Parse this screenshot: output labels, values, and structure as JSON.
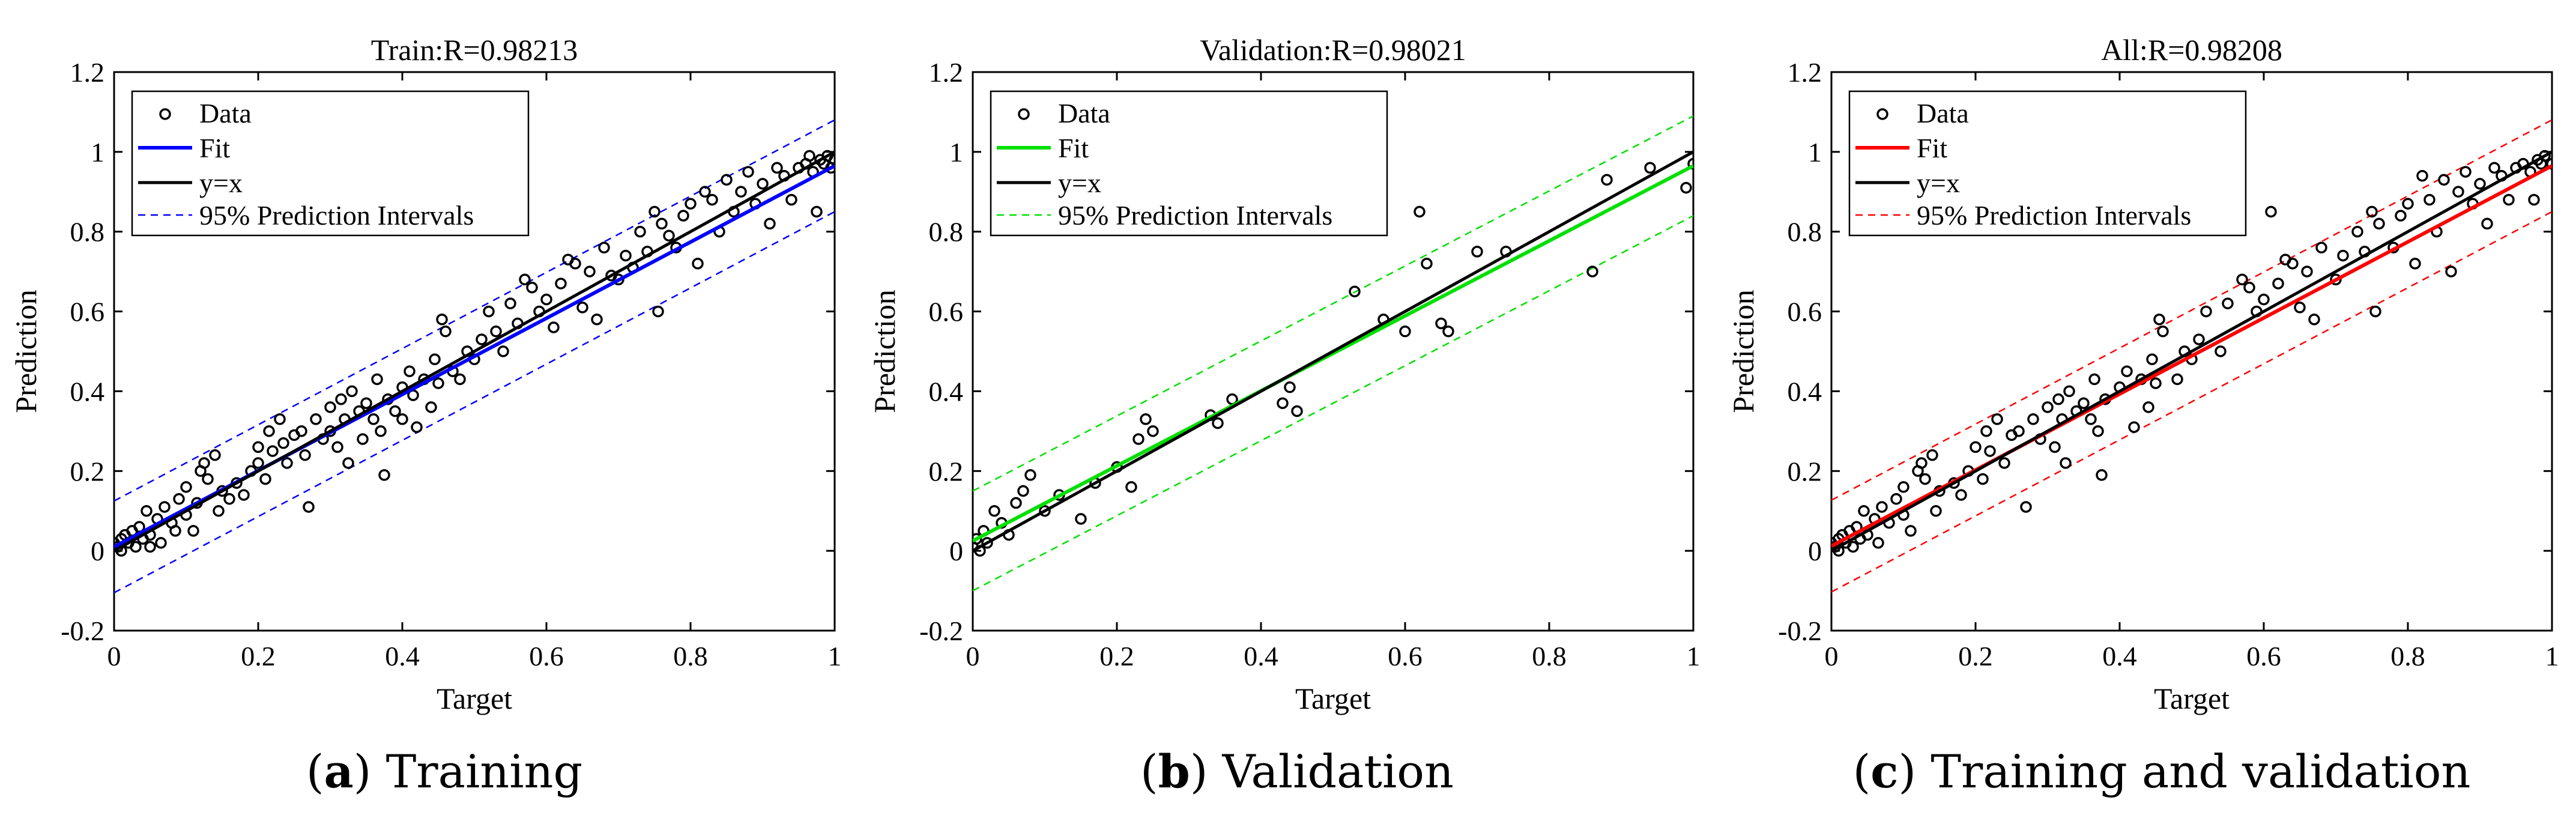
{
  "captions": [
    {
      "letter": "a",
      "text": "Training"
    },
    {
      "letter": "b",
      "text": "Validation"
    },
    {
      "letter": "c",
      "text": "Training and validation"
    }
  ],
  "chart_data": [
    {
      "type": "scatter",
      "title": "Train:R=0.98213",
      "xlabel": "Target",
      "ylabel": "Prediction",
      "xlim": [
        0,
        1
      ],
      "ylim": [
        -0.2,
        1.2
      ],
      "xticks": [
        "0",
        "0.2",
        "0.4",
        "0.6",
        "0.8",
        "1"
      ],
      "yticks": [
        "-0.2",
        "0",
        "0.2",
        "0.4",
        "0.6",
        "0.8",
        "1",
        "1.2"
      ],
      "legend": [
        "Data",
        "Fit",
        "y=x",
        "95% Prediction Intervals"
      ],
      "legend_position": "top-left",
      "color": "#0000ff",
      "fit": {
        "intercept": 0.01,
        "slope": 0.955
      },
      "interval_halfwidth": 0.115,
      "points": [
        [
          0.0,
          0.02
        ],
        [
          0.005,
          0.01
        ],
        [
          0.01,
          0.03
        ],
        [
          0.01,
          0.0
        ],
        [
          0.015,
          0.04
        ],
        [
          0.02,
          0.02
        ],
        [
          0.025,
          0.05
        ],
        [
          0.03,
          0.01
        ],
        [
          0.035,
          0.06
        ],
        [
          0.04,
          0.03
        ],
        [
          0.045,
          0.1
        ],
        [
          0.05,
          0.04
        ],
        [
          0.05,
          0.01
        ],
        [
          0.06,
          0.08
        ],
        [
          0.065,
          0.02
        ],
        [
          0.07,
          0.11
        ],
        [
          0.08,
          0.07
        ],
        [
          0.085,
          0.05
        ],
        [
          0.09,
          0.13
        ],
        [
          0.1,
          0.09
        ],
        [
          0.1,
          0.16
        ],
        [
          0.11,
          0.05
        ],
        [
          0.115,
          0.12
        ],
        [
          0.12,
          0.2
        ],
        [
          0.125,
          0.22
        ],
        [
          0.13,
          0.18
        ],
        [
          0.14,
          0.24
        ],
        [
          0.145,
          0.1
        ],
        [
          0.15,
          0.15
        ],
        [
          0.16,
          0.13
        ],
        [
          0.17,
          0.17
        ],
        [
          0.18,
          0.14
        ],
        [
          0.19,
          0.2
        ],
        [
          0.2,
          0.26
        ],
        [
          0.2,
          0.22
        ],
        [
          0.21,
          0.18
        ],
        [
          0.215,
          0.3
        ],
        [
          0.22,
          0.25
        ],
        [
          0.23,
          0.33
        ],
        [
          0.235,
          0.27
        ],
        [
          0.24,
          0.22
        ],
        [
          0.25,
          0.29
        ],
        [
          0.26,
          0.3
        ],
        [
          0.265,
          0.24
        ],
        [
          0.27,
          0.11
        ],
        [
          0.28,
          0.33
        ],
        [
          0.29,
          0.28
        ],
        [
          0.3,
          0.36
        ],
        [
          0.3,
          0.3
        ],
        [
          0.31,
          0.26
        ],
        [
          0.315,
          0.38
        ],
        [
          0.32,
          0.33
        ],
        [
          0.325,
          0.22
        ],
        [
          0.33,
          0.4
        ],
        [
          0.34,
          0.35
        ],
        [
          0.345,
          0.28
        ],
        [
          0.35,
          0.37
        ],
        [
          0.36,
          0.33
        ],
        [
          0.365,
          0.43
        ],
        [
          0.37,
          0.3
        ],
        [
          0.375,
          0.19
        ],
        [
          0.38,
          0.38
        ],
        [
          0.39,
          0.35
        ],
        [
          0.4,
          0.41
        ],
        [
          0.4,
          0.33
        ],
        [
          0.41,
          0.45
        ],
        [
          0.415,
          0.39
        ],
        [
          0.42,
          0.31
        ],
        [
          0.43,
          0.43
        ],
        [
          0.44,
          0.36
        ],
        [
          0.445,
          0.48
        ],
        [
          0.45,
          0.42
        ],
        [
          0.455,
          0.58
        ],
        [
          0.46,
          0.55
        ],
        [
          0.47,
          0.45
        ],
        [
          0.48,
          0.43
        ],
        [
          0.49,
          0.5
        ],
        [
          0.5,
          0.48
        ],
        [
          0.51,
          0.53
        ],
        [
          0.52,
          0.6
        ],
        [
          0.53,
          0.55
        ],
        [
          0.54,
          0.5
        ],
        [
          0.55,
          0.62
        ],
        [
          0.56,
          0.57
        ],
        [
          0.57,
          0.68
        ],
        [
          0.58,
          0.66
        ],
        [
          0.59,
          0.6
        ],
        [
          0.6,
          0.63
        ],
        [
          0.61,
          0.56
        ],
        [
          0.62,
          0.67
        ],
        [
          0.63,
          0.73
        ],
        [
          0.64,
          0.72
        ],
        [
          0.65,
          0.61
        ],
        [
          0.66,
          0.7
        ],
        [
          0.67,
          0.58
        ],
        [
          0.68,
          0.76
        ],
        [
          0.69,
          0.69
        ],
        [
          0.7,
          0.68
        ],
        [
          0.71,
          0.74
        ],
        [
          0.72,
          0.71
        ],
        [
          0.73,
          0.8
        ],
        [
          0.74,
          0.75
        ],
        [
          0.75,
          0.85
        ],
        [
          0.755,
          0.6
        ],
        [
          0.76,
          0.82
        ],
        [
          0.77,
          0.79
        ],
        [
          0.78,
          0.76
        ],
        [
          0.79,
          0.84
        ],
        [
          0.8,
          0.87
        ],
        [
          0.81,
          0.72
        ],
        [
          0.82,
          0.9
        ],
        [
          0.83,
          0.88
        ],
        [
          0.84,
          0.8
        ],
        [
          0.85,
          0.93
        ],
        [
          0.86,
          0.85
        ],
        [
          0.87,
          0.9
        ],
        [
          0.88,
          0.95
        ],
        [
          0.89,
          0.87
        ],
        [
          0.9,
          0.92
        ],
        [
          0.91,
          0.82
        ],
        [
          0.92,
          0.96
        ],
        [
          0.93,
          0.94
        ],
        [
          0.94,
          0.88
        ],
        [
          0.95,
          0.96
        ],
        [
          0.96,
          0.97
        ],
        [
          0.965,
          0.99
        ],
        [
          0.97,
          0.95
        ],
        [
          0.975,
          0.85
        ],
        [
          0.98,
          0.98
        ],
        [
          0.985,
          0.97
        ],
        [
          0.99,
          0.99
        ],
        [
          0.995,
          0.96
        ],
        [
          1.0,
          0.98
        ]
      ]
    },
    {
      "type": "scatter",
      "title": "Validation:R=0.98021",
      "xlabel": "Target",
      "ylabel": "Prediction",
      "xlim": [
        0,
        1
      ],
      "ylim": [
        -0.2,
        1.2
      ],
      "xticks": [
        "0",
        "0.2",
        "0.4",
        "0.6",
        "0.8",
        "1"
      ],
      "yticks": [
        "-0.2",
        "0",
        "0.2",
        "0.4",
        "0.6",
        "0.8",
        "1",
        "1.2"
      ],
      "legend": [
        "Data",
        "Fit",
        "y=x",
        "95% Prediction Intervals"
      ],
      "legend_position": "top-left",
      "color": "#00e000",
      "fit": {
        "intercept": 0.025,
        "slope": 0.94
      },
      "interval_halfwidth": 0.125,
      "points": [
        [
          0.0,
          0.01
        ],
        [
          0.005,
          0.03
        ],
        [
          0.01,
          0.0
        ],
        [
          0.015,
          0.05
        ],
        [
          0.02,
          0.02
        ],
        [
          0.03,
          0.1
        ],
        [
          0.04,
          0.07
        ],
        [
          0.05,
          0.04
        ],
        [
          0.06,
          0.12
        ],
        [
          0.07,
          0.15
        ],
        [
          0.08,
          0.19
        ],
        [
          0.1,
          0.1
        ],
        [
          0.12,
          0.14
        ],
        [
          0.15,
          0.08
        ],
        [
          0.17,
          0.17
        ],
        [
          0.2,
          0.21
        ],
        [
          0.22,
          0.16
        ],
        [
          0.23,
          0.28
        ],
        [
          0.24,
          0.33
        ],
        [
          0.25,
          0.3
        ],
        [
          0.33,
          0.34
        ],
        [
          0.34,
          0.32
        ],
        [
          0.36,
          0.38
        ],
        [
          0.43,
          0.37
        ],
        [
          0.44,
          0.41
        ],
        [
          0.45,
          0.35
        ],
        [
          0.53,
          0.65
        ],
        [
          0.57,
          0.58
        ],
        [
          0.6,
          0.55
        ],
        [
          0.62,
          0.85
        ],
        [
          0.63,
          0.72
        ],
        [
          0.65,
          0.57
        ],
        [
          0.66,
          0.55
        ],
        [
          0.7,
          0.75
        ],
        [
          0.74,
          0.75
        ],
        [
          0.86,
          0.7
        ],
        [
          0.88,
          0.93
        ],
        [
          0.94,
          0.96
        ],
        [
          0.99,
          0.91
        ],
        [
          1.0,
          0.97
        ]
      ]
    },
    {
      "type": "scatter",
      "title": "All:R=0.98208",
      "xlabel": "Target",
      "ylabel": "Prediction",
      "xlim": [
        0,
        1
      ],
      "ylim": [
        -0.2,
        1.2
      ],
      "xticks": [
        "0",
        "0.2",
        "0.4",
        "0.6",
        "0.8",
        "1"
      ],
      "yticks": [
        "-0.2",
        "0",
        "0.2",
        "0.4",
        "0.6",
        "0.8",
        "1",
        "1.2"
      ],
      "legend": [
        "Data",
        "Fit",
        "y=x",
        "95% Prediction Intervals"
      ],
      "legend_position": "top-left",
      "color": "#ff0000",
      "fit": {
        "intercept": 0.012,
        "slope": 0.953
      },
      "interval_halfwidth": 0.115,
      "points": [
        [
          0.0,
          0.02
        ],
        [
          0.005,
          0.01
        ],
        [
          0.01,
          0.03
        ],
        [
          0.01,
          0.0
        ],
        [
          0.015,
          0.04
        ],
        [
          0.02,
          0.02
        ],
        [
          0.025,
          0.05
        ],
        [
          0.03,
          0.01
        ],
        [
          0.035,
          0.06
        ],
        [
          0.04,
          0.03
        ],
        [
          0.045,
          0.1
        ],
        [
          0.05,
          0.04
        ],
        [
          0.06,
          0.08
        ],
        [
          0.065,
          0.02
        ],
        [
          0.07,
          0.11
        ],
        [
          0.08,
          0.07
        ],
        [
          0.09,
          0.13
        ],
        [
          0.1,
          0.09
        ],
        [
          0.1,
          0.16
        ],
        [
          0.11,
          0.05
        ],
        [
          0.12,
          0.2
        ],
        [
          0.125,
          0.22
        ],
        [
          0.13,
          0.18
        ],
        [
          0.14,
          0.24
        ],
        [
          0.145,
          0.1
        ],
        [
          0.15,
          0.15
        ],
        [
          0.17,
          0.17
        ],
        [
          0.18,
          0.14
        ],
        [
          0.19,
          0.2
        ],
        [
          0.2,
          0.26
        ],
        [
          0.21,
          0.18
        ],
        [
          0.215,
          0.3
        ],
        [
          0.22,
          0.25
        ],
        [
          0.23,
          0.33
        ],
        [
          0.24,
          0.22
        ],
        [
          0.25,
          0.29
        ],
        [
          0.26,
          0.3
        ],
        [
          0.27,
          0.11
        ],
        [
          0.28,
          0.33
        ],
        [
          0.29,
          0.28
        ],
        [
          0.3,
          0.36
        ],
        [
          0.31,
          0.26
        ],
        [
          0.315,
          0.38
        ],
        [
          0.32,
          0.33
        ],
        [
          0.325,
          0.22
        ],
        [
          0.33,
          0.4
        ],
        [
          0.34,
          0.35
        ],
        [
          0.35,
          0.37
        ],
        [
          0.36,
          0.33
        ],
        [
          0.365,
          0.43
        ],
        [
          0.37,
          0.3
        ],
        [
          0.375,
          0.19
        ],
        [
          0.38,
          0.38
        ],
        [
          0.4,
          0.41
        ],
        [
          0.41,
          0.45
        ],
        [
          0.42,
          0.31
        ],
        [
          0.43,
          0.43
        ],
        [
          0.44,
          0.36
        ],
        [
          0.445,
          0.48
        ],
        [
          0.45,
          0.42
        ],
        [
          0.455,
          0.58
        ],
        [
          0.46,
          0.55
        ],
        [
          0.48,
          0.43
        ],
        [
          0.49,
          0.5
        ],
        [
          0.5,
          0.48
        ],
        [
          0.51,
          0.53
        ],
        [
          0.52,
          0.6
        ],
        [
          0.54,
          0.5
        ],
        [
          0.55,
          0.62
        ],
        [
          0.57,
          0.68
        ],
        [
          0.58,
          0.66
        ],
        [
          0.59,
          0.6
        ],
        [
          0.6,
          0.63
        ],
        [
          0.61,
          0.85
        ],
        [
          0.62,
          0.67
        ],
        [
          0.63,
          0.73
        ],
        [
          0.64,
          0.72
        ],
        [
          0.65,
          0.61
        ],
        [
          0.66,
          0.7
        ],
        [
          0.67,
          0.58
        ],
        [
          0.68,
          0.76
        ],
        [
          0.7,
          0.68
        ],
        [
          0.71,
          0.74
        ],
        [
          0.73,
          0.8
        ],
        [
          0.74,
          0.75
        ],
        [
          0.75,
          0.85
        ],
        [
          0.755,
          0.6
        ],
        [
          0.76,
          0.82
        ],
        [
          0.78,
          0.76
        ],
        [
          0.79,
          0.84
        ],
        [
          0.8,
          0.87
        ],
        [
          0.81,
          0.72
        ],
        [
          0.82,
          0.94
        ],
        [
          0.83,
          0.88
        ],
        [
          0.84,
          0.8
        ],
        [
          0.85,
          0.93
        ],
        [
          0.86,
          0.7
        ],
        [
          0.87,
          0.9
        ],
        [
          0.88,
          0.95
        ],
        [
          0.89,
          0.87
        ],
        [
          0.9,
          0.92
        ],
        [
          0.91,
          0.82
        ],
        [
          0.92,
          0.96
        ],
        [
          0.93,
          0.94
        ],
        [
          0.94,
          0.88
        ],
        [
          0.95,
          0.96
        ],
        [
          0.96,
          0.97
        ],
        [
          0.97,
          0.95
        ],
        [
          0.975,
          0.88
        ],
        [
          0.98,
          0.98
        ],
        [
          0.985,
          0.97
        ],
        [
          0.99,
          0.99
        ],
        [
          1.0,
          0.97
        ]
      ]
    }
  ]
}
